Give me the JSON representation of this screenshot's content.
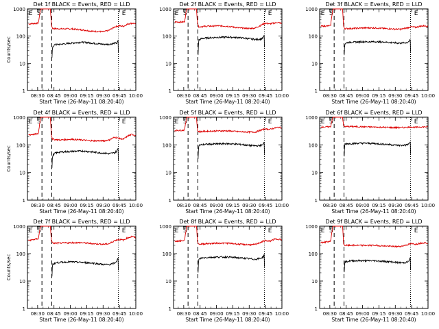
{
  "figure": {
    "background": "#ffffff",
    "events_color": "#000000",
    "lld_color": "#dd0000"
  },
  "chart_data": [
    {
      "type": "line",
      "title": "Det 1f BLACK = Events, RED = LLD",
      "xlabel": "Start Time (26-May-11 08:20:40)",
      "ylabel": "Counts/sec",
      "x_ticks": [
        "08:30",
        "08:45",
        "09:00",
        "09:15",
        "09:30",
        "09:45",
        "10:00"
      ],
      "y_ticks": [
        "1",
        "10",
        "100",
        "1000"
      ],
      "ylim": [
        1,
        1000
      ],
      "yscale": "log",
      "xlim_minutes": [
        0,
        99.33
      ],
      "markers": [
        {
          "label": "E",
          "minute": 0.5
        },
        {
          "label": "S",
          "minute": 8.2
        },
        {
          "label": "E",
          "minute": 86
        }
      ],
      "dashed_lines": [
        13.3,
        22.3
      ],
      "dotted_lines": [
        83.3,
        99.3
      ],
      "series": [
        {
          "name": "LLD",
          "x": [
            1,
            10,
            12,
            14,
            18,
            21,
            22,
            23,
            30,
            40,
            50,
            60,
            70,
            75,
            80,
            84,
            88,
            92,
            96,
            99
          ],
          "y": [
            280,
            300,
            1000,
            1000,
            1000,
            1000,
            260,
            190,
            185,
            185,
            170,
            150,
            145,
            165,
            220,
            240,
            230,
            280,
            300,
            280
          ]
        },
        {
          "name": "Events",
          "x": [
            22.5,
            23,
            25,
            30,
            40,
            50,
            60,
            70,
            75,
            80,
            82,
            83.3
          ],
          "y": [
            15,
            40,
            48,
            50,
            55,
            60,
            55,
            50,
            50,
            55,
            55,
            70
          ]
        }
      ]
    },
    {
      "type": "line",
      "title": "Det 2f BLACK = Events, RED = LLD",
      "xlabel": "Start Time (26-May-11 08:20:40)",
      "ylabel": "",
      "x_ticks": [
        "08:30",
        "08:45",
        "09:00",
        "09:15",
        "09:30",
        "09:45",
        "10:00"
      ],
      "y_ticks": [
        "1",
        "10",
        "100",
        "1000"
      ],
      "ylim": [
        1,
        1000
      ],
      "yscale": "log",
      "xlim_minutes": [
        0,
        99.33
      ],
      "markers": [
        {
          "label": "E",
          "minute": 0.5
        },
        {
          "label": "S",
          "minute": 8.2
        },
        {
          "label": "E",
          "minute": 86
        }
      ],
      "dashed_lines": [
        13.3,
        22.3
      ],
      "dotted_lines": [
        83.3,
        99.3
      ],
      "series": [
        {
          "name": "LLD",
          "x": [
            1,
            10,
            12,
            14,
            18,
            21,
            22,
            23,
            30,
            40,
            50,
            60,
            70,
            75,
            80,
            84,
            88,
            92,
            96,
            99
          ],
          "y": [
            330,
            330,
            1000,
            1000,
            1000,
            1000,
            300,
            220,
            230,
            240,
            230,
            200,
            190,
            200,
            250,
            300,
            280,
            300,
            320,
            290
          ]
        },
        {
          "name": "Events",
          "x": [
            22.5,
            23,
            25,
            30,
            40,
            50,
            60,
            70,
            75,
            80,
            82,
            83.3
          ],
          "y": [
            20,
            70,
            80,
            85,
            90,
            92,
            88,
            80,
            75,
            78,
            85,
            110
          ]
        }
      ]
    },
    {
      "type": "line",
      "title": "Det 3f BLACK = Events, RED = LLD",
      "xlabel": "Start Time (26-May-11 08:20:40)",
      "ylabel": "",
      "x_ticks": [
        "08:30",
        "08:45",
        "09:00",
        "09:15",
        "09:30",
        "09:45",
        "10:00"
      ],
      "y_ticks": [
        "1",
        "10",
        "100",
        "1000"
      ],
      "ylim": [
        1,
        1000
      ],
      "yscale": "log",
      "xlim_minutes": [
        0,
        99.33
      ],
      "markers": [
        {
          "label": "E",
          "minute": 0.5
        },
        {
          "label": "S",
          "minute": 8.2
        },
        {
          "label": "E",
          "minute": 86
        }
      ],
      "dashed_lines": [
        13.3,
        22.3
      ],
      "dotted_lines": [
        83.3,
        99.3
      ],
      "series": [
        {
          "name": "LLD",
          "x": [
            1,
            10,
            12,
            14,
            18,
            21,
            22,
            23,
            30,
            40,
            50,
            60,
            70,
            75,
            80,
            84,
            88,
            92,
            96,
            99
          ],
          "y": [
            230,
            240,
            1000,
            1000,
            1000,
            1000,
            220,
            190,
            190,
            200,
            200,
            190,
            180,
            180,
            200,
            220,
            210,
            230,
            240,
            230
          ]
        },
        {
          "name": "Events",
          "x": [
            22.5,
            23,
            25,
            30,
            40,
            50,
            60,
            70,
            75,
            80,
            82,
            83.3
          ],
          "y": [
            20,
            52,
            58,
            60,
            62,
            62,
            60,
            56,
            55,
            58,
            65,
            75
          ]
        }
      ]
    },
    {
      "type": "line",
      "title": "Det 4f BLACK = Events, RED = LLD",
      "xlabel": "Start Time (26-May-11 08:20:40)",
      "ylabel": "Counts/sec",
      "x_ticks": [
        "08:30",
        "08:45",
        "09:00",
        "09:15",
        "09:30",
        "09:45",
        "10:00"
      ],
      "y_ticks": [
        "1",
        "10",
        "100",
        "1000"
      ],
      "ylim": [
        1,
        1000
      ],
      "yscale": "log",
      "xlim_minutes": [
        0,
        99.33
      ],
      "markers": [
        {
          "label": "E",
          "minute": 0.5
        },
        {
          "label": "S",
          "minute": 8.2
        },
        {
          "label": "E",
          "minute": 86
        }
      ],
      "dashed_lines": [
        13.3,
        22.3
      ],
      "dotted_lines": [
        83.3,
        99.3
      ],
      "series": [
        {
          "name": "LLD",
          "x": [
            1,
            10,
            12,
            14,
            18,
            21,
            22,
            23,
            30,
            40,
            50,
            60,
            70,
            75,
            80,
            84,
            88,
            92,
            96,
            99
          ],
          "y": [
            230,
            250,
            1000,
            1000,
            1000,
            1000,
            220,
            160,
            150,
            160,
            150,
            140,
            140,
            150,
            190,
            170,
            160,
            210,
            240,
            220
          ]
        },
        {
          "name": "Events",
          "x": [
            22.5,
            23,
            25,
            30,
            40,
            50,
            60,
            70,
            75,
            80,
            82,
            83.3
          ],
          "y": [
            15,
            40,
            50,
            55,
            58,
            60,
            55,
            50,
            48,
            52,
            60,
            80
          ]
        }
      ]
    },
    {
      "type": "line",
      "title": "Det 5f BLACK = Events, RED = LLD",
      "xlabel": "Start Time (26-May-11 08:20:40)",
      "ylabel": "",
      "x_ticks": [
        "08:30",
        "08:45",
        "09:00",
        "09:15",
        "09:30",
        "09:45",
        "10:00"
      ],
      "y_ticks": [
        "1",
        "10",
        "100",
        "1000"
      ],
      "ylim": [
        1,
        1000
      ],
      "yscale": "log",
      "xlim_minutes": [
        0,
        99.33
      ],
      "markers": [
        {
          "label": "E",
          "minute": 0.5
        },
        {
          "label": "S",
          "minute": 8.2
        },
        {
          "label": "E",
          "minute": 86
        }
      ],
      "dashed_lines": [
        13.3,
        22.3
      ],
      "dotted_lines": [
        83.3,
        99.3
      ],
      "series": [
        {
          "name": "LLD",
          "x": [
            1,
            10,
            12,
            14,
            18,
            21,
            22,
            23,
            30,
            40,
            50,
            60,
            70,
            75,
            80,
            84,
            88,
            92,
            96,
            99
          ],
          "y": [
            330,
            340,
            1000,
            1000,
            1000,
            1000,
            330,
            300,
            310,
            320,
            320,
            300,
            290,
            290,
            340,
            380,
            360,
            400,
            430,
            420
          ]
        },
        {
          "name": "Events",
          "x": [
            22.5,
            23,
            25,
            30,
            40,
            50,
            60,
            70,
            75,
            80,
            82,
            83.3
          ],
          "y": [
            30,
            95,
            100,
            105,
            108,
            110,
            105,
            95,
            92,
            95,
            100,
            135
          ]
        }
      ]
    },
    {
      "type": "line",
      "title": "Det 6f BLACK = Events, RED = LLD",
      "xlabel": "Start Time (26-May-11 08:20:40)",
      "ylabel": "",
      "x_ticks": [
        "08:30",
        "08:45",
        "09:00",
        "09:15",
        "09:30",
        "09:45",
        "10:00"
      ],
      "y_ticks": [
        "1",
        "10",
        "100",
        "1000"
      ],
      "ylim": [
        1,
        1000
      ],
      "yscale": "log",
      "xlim_minutes": [
        0,
        99.33
      ],
      "markers": [
        {
          "label": "E",
          "minute": 0.5
        },
        {
          "label": "S",
          "minute": 8.2
        },
        {
          "label": "E",
          "minute": 86
        }
      ],
      "dashed_lines": [
        13.3,
        22.3
      ],
      "dotted_lines": [
        83.3,
        99.3
      ],
      "series": [
        {
          "name": "LLD",
          "x": [
            1,
            10,
            12,
            14,
            18,
            21,
            22,
            23,
            30,
            40,
            50,
            60,
            70,
            75,
            80,
            84,
            88,
            92,
            96,
            99
          ],
          "y": [
            440,
            450,
            1000,
            1000,
            1000,
            1000,
            470,
            460,
            460,
            450,
            440,
            430,
            420,
            420,
            430,
            440,
            430,
            440,
            450,
            440
          ]
        },
        {
          "name": "Events",
          "x": [
            22.5,
            23,
            25,
            30,
            40,
            50,
            60,
            70,
            75,
            80,
            82,
            83.3
          ],
          "y": [
            40,
            105,
            110,
            112,
            115,
            112,
            105,
            98,
            95,
            100,
            110,
            135
          ]
        }
      ]
    },
    {
      "type": "line",
      "title": "Det 7f BLACK = Events, RED = LLD",
      "xlabel": "Start Time (26-May-11 08:20:40)",
      "ylabel": "Counts/sec",
      "x_ticks": [
        "08:30",
        "08:45",
        "09:00",
        "09:15",
        "09:30",
        "09:45",
        "10:00"
      ],
      "y_ticks": [
        "1",
        "10",
        "100",
        "1000"
      ],
      "ylim": [
        1,
        1000
      ],
      "yscale": "log",
      "xlim_minutes": [
        0,
        99.33
      ],
      "markers": [
        {
          "label": "E",
          "minute": 0.5
        },
        {
          "label": "S",
          "minute": 8.2
        },
        {
          "label": "E",
          "minute": 86
        }
      ],
      "dashed_lines": [
        13.3,
        22.3
      ],
      "dotted_lines": [
        83.3,
        99.3
      ],
      "series": [
        {
          "name": "LLD",
          "x": [
            1,
            10,
            12,
            14,
            18,
            21,
            22,
            23,
            30,
            40,
            50,
            60,
            70,
            75,
            80,
            84,
            88,
            92,
            96,
            99
          ],
          "y": [
            300,
            350,
            1000,
            1000,
            1000,
            1000,
            300,
            240,
            240,
            250,
            250,
            230,
            220,
            230,
            300,
            330,
            310,
            380,
            420,
            380
          ]
        },
        {
          "name": "Events",
          "x": [
            22.5,
            23,
            25,
            30,
            40,
            50,
            60,
            70,
            75,
            80,
            82,
            83.3
          ],
          "y": [
            15,
            40,
            45,
            48,
            50,
            48,
            45,
            40,
            40,
            45,
            55,
            70
          ]
        }
      ]
    },
    {
      "type": "line",
      "title": "Det 8f BLACK = Events, RED = LLD",
      "xlabel": "Start Time (26-May-11 08:20:40)",
      "ylabel": "",
      "x_ticks": [
        "08:30",
        "08:45",
        "09:00",
        "09:15",
        "09:30",
        "09:45",
        "10:00"
      ],
      "y_ticks": [
        "1",
        "10",
        "100",
        "1000"
      ],
      "ylim": [
        1,
        1000
      ],
      "yscale": "log",
      "xlim_minutes": [
        0,
        99.33
      ],
      "markers": [
        {
          "label": "E",
          "minute": 0.5
        },
        {
          "label": "S",
          "minute": 8.2
        },
        {
          "label": "E",
          "minute": 86
        }
      ],
      "dashed_lines": [
        13.3,
        22.3
      ],
      "dotted_lines": [
        83.3,
        99.3
      ],
      "series": [
        {
          "name": "LLD",
          "x": [
            1,
            10,
            12,
            14,
            18,
            21,
            22,
            23,
            30,
            40,
            50,
            60,
            70,
            75,
            80,
            84,
            88,
            92,
            96,
            99
          ],
          "y": [
            280,
            300,
            1000,
            1000,
            1000,
            1000,
            280,
            220,
            230,
            240,
            240,
            220,
            210,
            215,
            260,
            300,
            280,
            330,
            340,
            320
          ]
        },
        {
          "name": "Events",
          "x": [
            22.5,
            23,
            25,
            30,
            40,
            50,
            60,
            70,
            75,
            80,
            82,
            83.3
          ],
          "y": [
            20,
            60,
            68,
            72,
            75,
            75,
            70,
            65,
            62,
            68,
            75,
            95
          ]
        }
      ]
    },
    {
      "type": "line",
      "title": "Det 9f BLACK = Events, RED = LLD",
      "xlabel": "Start Time (26-May-11 08:20:40)",
      "ylabel": "",
      "x_ticks": [
        "08:30",
        "08:45",
        "09:00",
        "09:15",
        "09:30",
        "09:45",
        "10:00"
      ],
      "y_ticks": [
        "1",
        "10",
        "100",
        "1000"
      ],
      "ylim": [
        1,
        1000
      ],
      "yscale": "log",
      "xlim_minutes": [
        0,
        99.33
      ],
      "markers": [
        {
          "label": "E",
          "minute": 0.5
        },
        {
          "label": "S",
          "minute": 8.2
        },
        {
          "label": "E",
          "minute": 86
        }
      ],
      "dashed_lines": [
        13.3,
        22.3
      ],
      "dotted_lines": [
        83.3,
        99.3
      ],
      "series": [
        {
          "name": "LLD",
          "x": [
            1,
            10,
            12,
            14,
            18,
            21,
            22,
            23,
            30,
            40,
            50,
            60,
            70,
            75,
            80,
            84,
            88,
            92,
            96,
            99
          ],
          "y": [
            250,
            280,
            1000,
            1000,
            1000,
            1000,
            230,
            200,
            200,
            200,
            200,
            190,
            180,
            185,
            210,
            230,
            220,
            240,
            250,
            240
          ]
        },
        {
          "name": "Events",
          "x": [
            22.5,
            23,
            25,
            30,
            40,
            50,
            60,
            70,
            75,
            80,
            82,
            83.3
          ],
          "y": [
            20,
            48,
            52,
            55,
            55,
            55,
            52,
            48,
            46,
            48,
            55,
            75
          ]
        }
      ]
    }
  ]
}
